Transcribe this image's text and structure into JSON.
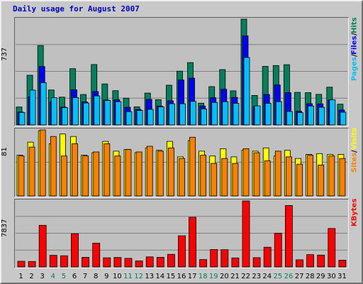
{
  "title": "Daily usage for August 2007",
  "colors": {
    "hits": "#00805c",
    "files": "#0000ff",
    "pages": "#00c0ff",
    "visits": "#ffff00",
    "sites": "#ff8000",
    "kbytes": "#ff0000",
    "weekend_label": "#00805c",
    "weekday_label": "#000000"
  },
  "panels": {
    "hits": {
      "max_label": "737",
      "legend": [
        {
          "text": "Pages",
          "color": "#00c0ff"
        },
        {
          "text": " / ",
          "color": "#000000"
        },
        {
          "text": "Files",
          "color": "#0000ff"
        },
        {
          "text": " / ",
          "color": "#000000"
        },
        {
          "text": "Hits",
          "color": "#00805c"
        }
      ]
    },
    "visits": {
      "max_label": "81",
      "legend": [
        {
          "text": "Sites",
          "color": "#ff8000"
        },
        {
          "text": " / ",
          "color": "#000000"
        },
        {
          "text": "Visits",
          "color": "#ffff00"
        }
      ]
    },
    "kbytes": {
      "max_label": "7837",
      "legend": [
        {
          "text": "KBytes",
          "color": "#ff0000"
        }
      ]
    }
  },
  "chart_data": [
    {
      "type": "bar",
      "categories": [
        "1",
        "2",
        "3",
        "4",
        "5",
        "6",
        "7",
        "8",
        "9",
        "10",
        "11",
        "12",
        "13",
        "14",
        "15",
        "16",
        "17",
        "18",
        "19",
        "20",
        "21",
        "22",
        "23",
        "24",
        "25",
        "26",
        "27",
        "28",
        "29",
        "30",
        "31"
      ],
      "weekend_days": [
        "4",
        "5",
        "11",
        "12",
        "18",
        "19",
        "25",
        "26"
      ],
      "ylim": [
        0,
        737
      ],
      "series": [
        {
          "name": "Hits",
          "values": [
            125,
            346,
            553,
            244,
            194,
            392,
            212,
            421,
            286,
            239,
            187,
            126,
            222,
            176,
            277,
            375,
            435,
            152,
            267,
            386,
            238,
            737,
            206,
            408,
            414,
            420,
            227,
            225,
            213,
            263,
            145
          ]
        },
        {
          "name": "Files",
          "values": [
            90,
            196,
            407,
            160,
            124,
            245,
            161,
            233,
            174,
            176,
            123,
            108,
            178,
            132,
            168,
            313,
            326,
            132,
            190,
            249,
            192,
            621,
            130,
            212,
            279,
            225,
            96,
            148,
            147,
            173,
            104
          ]
        },
        {
          "name": "Pages",
          "values": [
            87,
            243,
            295,
            190,
            121,
            191,
            153,
            203,
            171,
            162,
            93,
            101,
            109,
            126,
            148,
            148,
            164,
            112,
            157,
            162,
            151,
            470,
            133,
            151,
            162,
            94,
            86,
            132,
            123,
            175,
            89
          ]
        }
      ]
    },
    {
      "type": "bar",
      "categories": [
        "1",
        "2",
        "3",
        "4",
        "5",
        "6",
        "7",
        "8",
        "9",
        "10",
        "11",
        "12",
        "13",
        "14",
        "15",
        "16",
        "17",
        "18",
        "19",
        "20",
        "21",
        "22",
        "23",
        "24",
        "25",
        "26",
        "27",
        "28",
        "29",
        "30",
        "31"
      ],
      "ylim": [
        0,
        81
      ],
      "series": [
        {
          "name": "Visits",
          "values": [
            50,
            66,
            80,
            64,
            76,
            73,
            50,
            53,
            67,
            55,
            57,
            53,
            59,
            56,
            67,
            48,
            68,
            55,
            49,
            58,
            48,
            56,
            55,
            59,
            49,
            56,
            46,
            51,
            52,
            51,
            51
          ]
        },
        {
          "name": "Sites",
          "values": [
            49,
            60,
            81,
            73,
            49,
            64,
            49,
            54,
            64,
            49,
            57,
            54,
            61,
            55,
            59,
            46,
            72,
            50,
            40,
            46,
            40,
            58,
            53,
            43,
            55,
            48,
            39,
            50,
            38,
            49,
            46
          ]
        }
      ]
    },
    {
      "type": "bar",
      "categories": [
        "1",
        "2",
        "3",
        "4",
        "5",
        "6",
        "7",
        "8",
        "9",
        "10",
        "11",
        "12",
        "13",
        "14",
        "15",
        "16",
        "17",
        "18",
        "19",
        "20",
        "21",
        "22",
        "23",
        "24",
        "25",
        "26",
        "27",
        "28",
        "29",
        "30",
        "31"
      ],
      "ylim": [
        0,
        7837
      ],
      "series": [
        {
          "name": "KBytes",
          "values": [
            670,
            650,
            4950,
            1380,
            1330,
            3940,
            1150,
            2820,
            1090,
            1130,
            1020,
            720,
            1200,
            1150,
            1500,
            3700,
            5900,
            880,
            2070,
            2050,
            1070,
            7837,
            1100,
            2340,
            4000,
            7300,
            850,
            1470,
            1410,
            4570,
            800
          ]
        }
      ]
    }
  ]
}
